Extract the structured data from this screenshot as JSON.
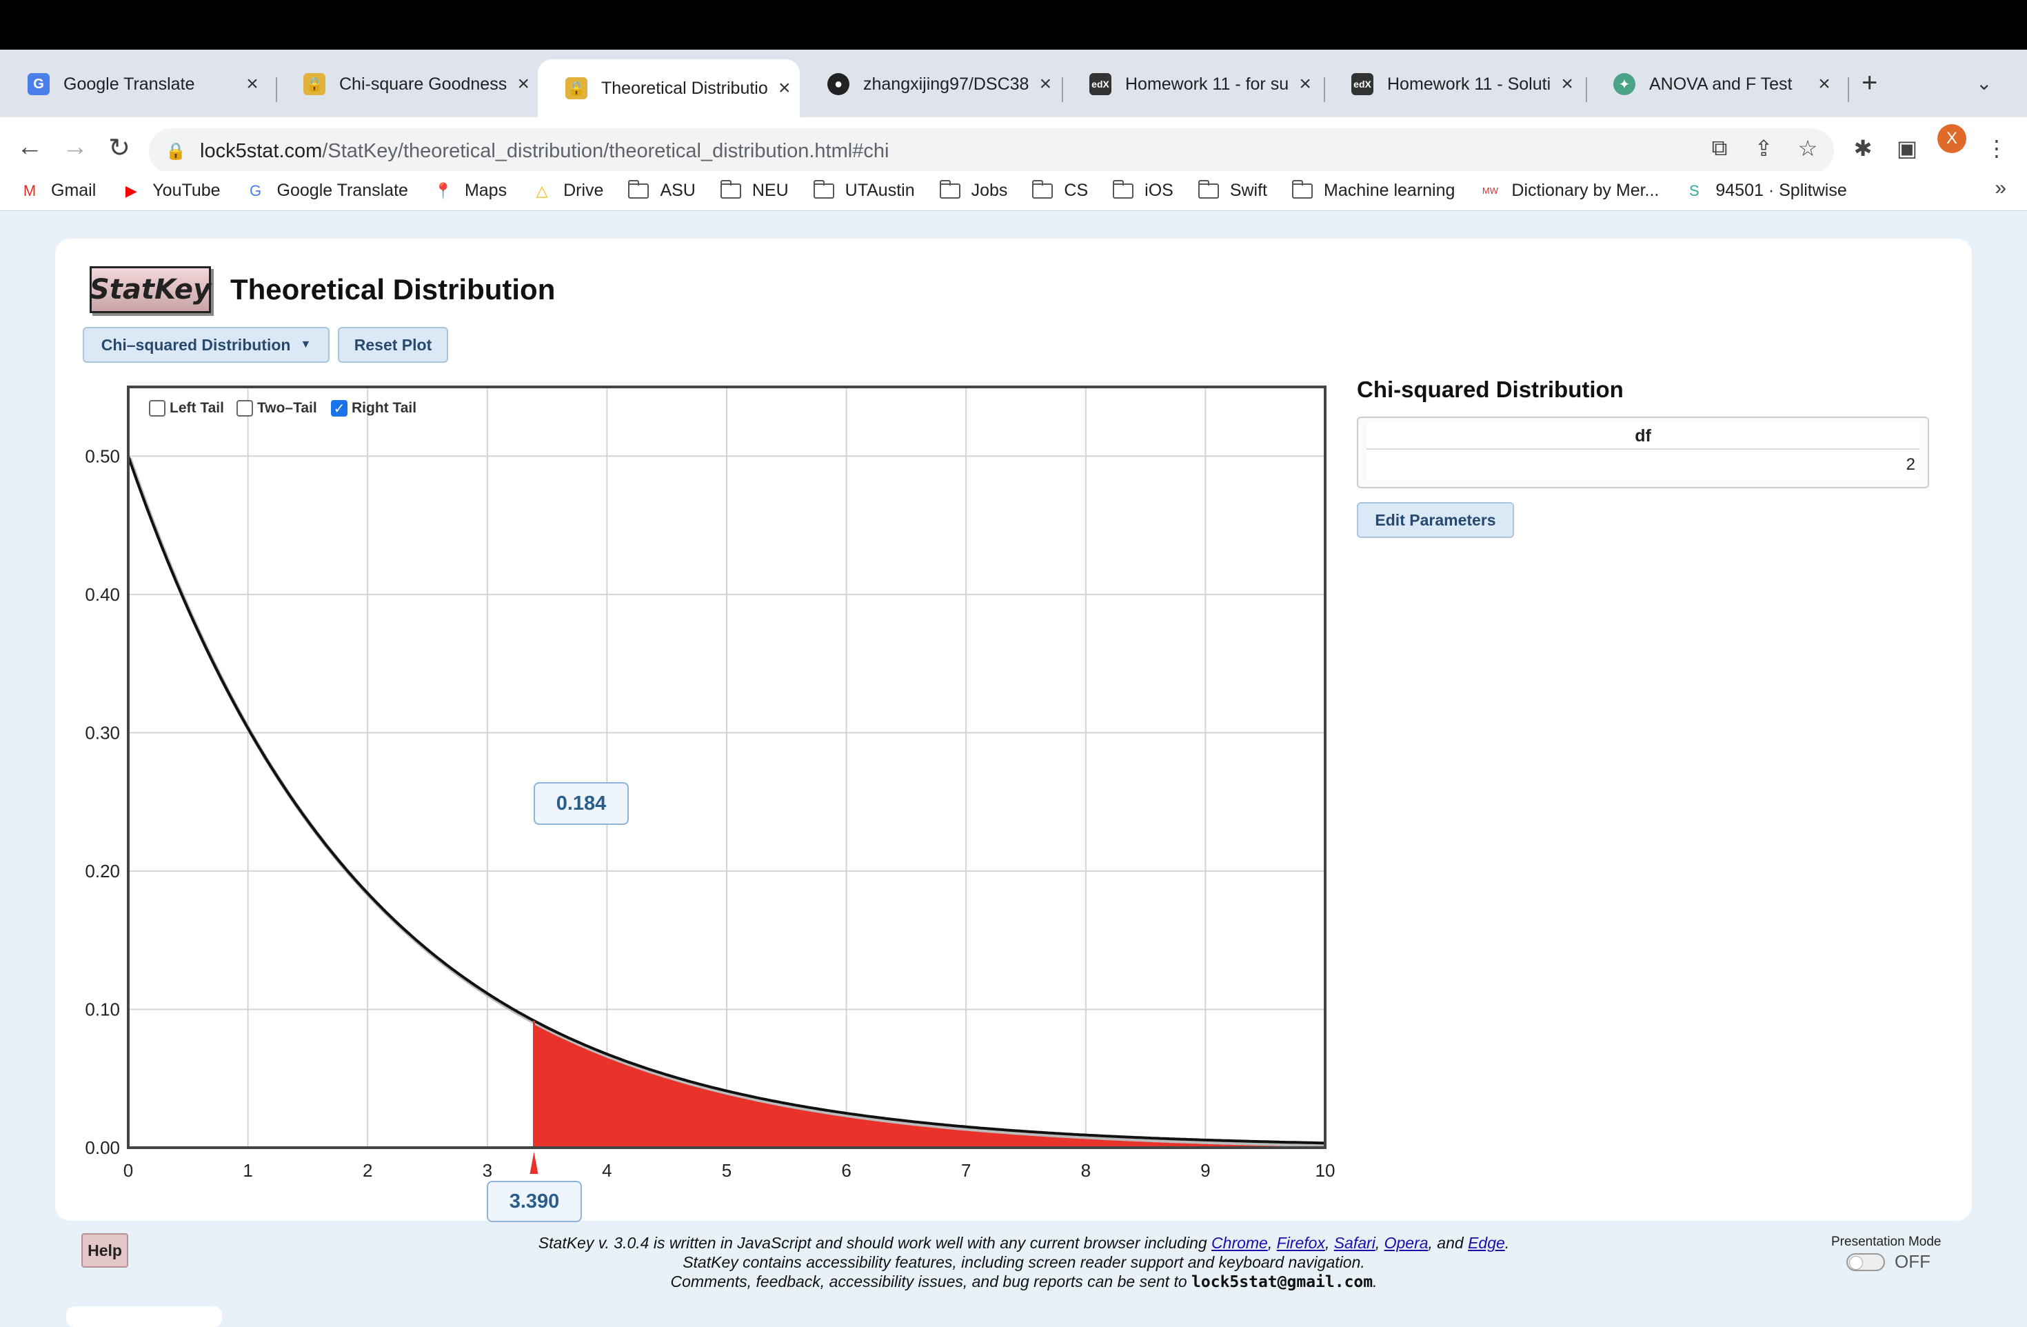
{
  "browser": {
    "tabs": [
      {
        "title": "Google Translate",
        "favicon": "google-translate-icon",
        "active": false
      },
      {
        "title": "Chi-square Goodness",
        "favicon": "lock-icon",
        "active": false
      },
      {
        "title": "Theoretical Distributio",
        "favicon": "lock-icon",
        "active": true
      },
      {
        "title": "zhangxijing97/DSC38",
        "favicon": "github-icon",
        "active": false
      },
      {
        "title": "Homework 11 - for su",
        "favicon": "edx-icon",
        "active": false
      },
      {
        "title": "Homework 11 - Soluti",
        "favicon": "edx-icon",
        "active": false
      },
      {
        "title": "ANOVA and F Test",
        "favicon": "chatgpt-icon",
        "active": false
      }
    ],
    "url_host": "lock5stat.com",
    "url_path": "/StatKey/theoretical_distribution/theoretical_distribution.html#chi",
    "avatar_letter": "X",
    "bookmarks": [
      {
        "label": "Gmail",
        "icon": "gmail-icon"
      },
      {
        "label": "YouTube",
        "icon": "youtube-icon"
      },
      {
        "label": "Google Translate",
        "icon": "google-translate-icon"
      },
      {
        "label": "Maps",
        "icon": "maps-icon"
      },
      {
        "label": "Drive",
        "icon": "drive-icon"
      },
      {
        "label": "ASU",
        "icon": "folder-icon"
      },
      {
        "label": "NEU",
        "icon": "folder-icon"
      },
      {
        "label": "UTAustin",
        "icon": "folder-icon"
      },
      {
        "label": "Jobs",
        "icon": "folder-icon"
      },
      {
        "label": "CS",
        "icon": "folder-icon"
      },
      {
        "label": "iOS",
        "icon": "folder-icon"
      },
      {
        "label": "Swift",
        "icon": "folder-icon"
      },
      {
        "label": "Machine learning",
        "icon": "folder-icon"
      },
      {
        "label": "Dictionary by Mer...",
        "icon": "merriam-webster-icon"
      },
      {
        "label": "94501 · Splitwise",
        "icon": "splitwise-icon"
      }
    ]
  },
  "header": {
    "logo_text": "StatKey",
    "title": "Theoretical Distribution"
  },
  "controls": {
    "distribution_label": "Chi–squared Distribution",
    "reset_label": "Reset Plot",
    "tails": [
      {
        "label": "Left Tail",
        "checked": false
      },
      {
        "label": "Two–Tail",
        "checked": false
      },
      {
        "label": "Right Tail",
        "checked": true
      }
    ],
    "area_value": "0.184",
    "x_value": "3.390"
  },
  "side": {
    "title": "Chi-squared Distribution",
    "param_header": "df",
    "param_value": "2",
    "edit_label": "Edit Parameters"
  },
  "footer": {
    "help_label": "Help",
    "line1_prefix": "StatKey v. 3.0.4 is written in JavaScript and should work well with any current browser including",
    "browsers": [
      "Chrome",
      "Firefox",
      "Safari",
      "Opera",
      "Edge"
    ],
    "line2": "StatKey contains accessibility features, including screen reader support and keyboard navigation.",
    "line3_prefix": "Comments, feedback, accessibility issues, and bug reports can be sent to",
    "email": "lock5stat@gmail.com",
    "presentation_label": "Presentation Mode",
    "presentation_state": "OFF"
  },
  "colors": {
    "tail_fill": "#e8322a",
    "curve": "#111111",
    "button_bg": "#dbe9f6",
    "button_text": "#27496d"
  },
  "chart_data": {
    "type": "area",
    "distribution": "chi-squared",
    "df": 2,
    "xlim": [
      0,
      10
    ],
    "ylim": [
      0,
      0.55
    ],
    "x_ticks": [
      0,
      1,
      2,
      3,
      4,
      5,
      6,
      7,
      8,
      9,
      10
    ],
    "y_ticks": [
      "0.00",
      "0.10",
      "0.20",
      "0.30",
      "0.40",
      "0.50"
    ],
    "shaded_tail": "right",
    "cutoff_x": 3.39,
    "tail_area": 0.184,
    "grid": true
  }
}
